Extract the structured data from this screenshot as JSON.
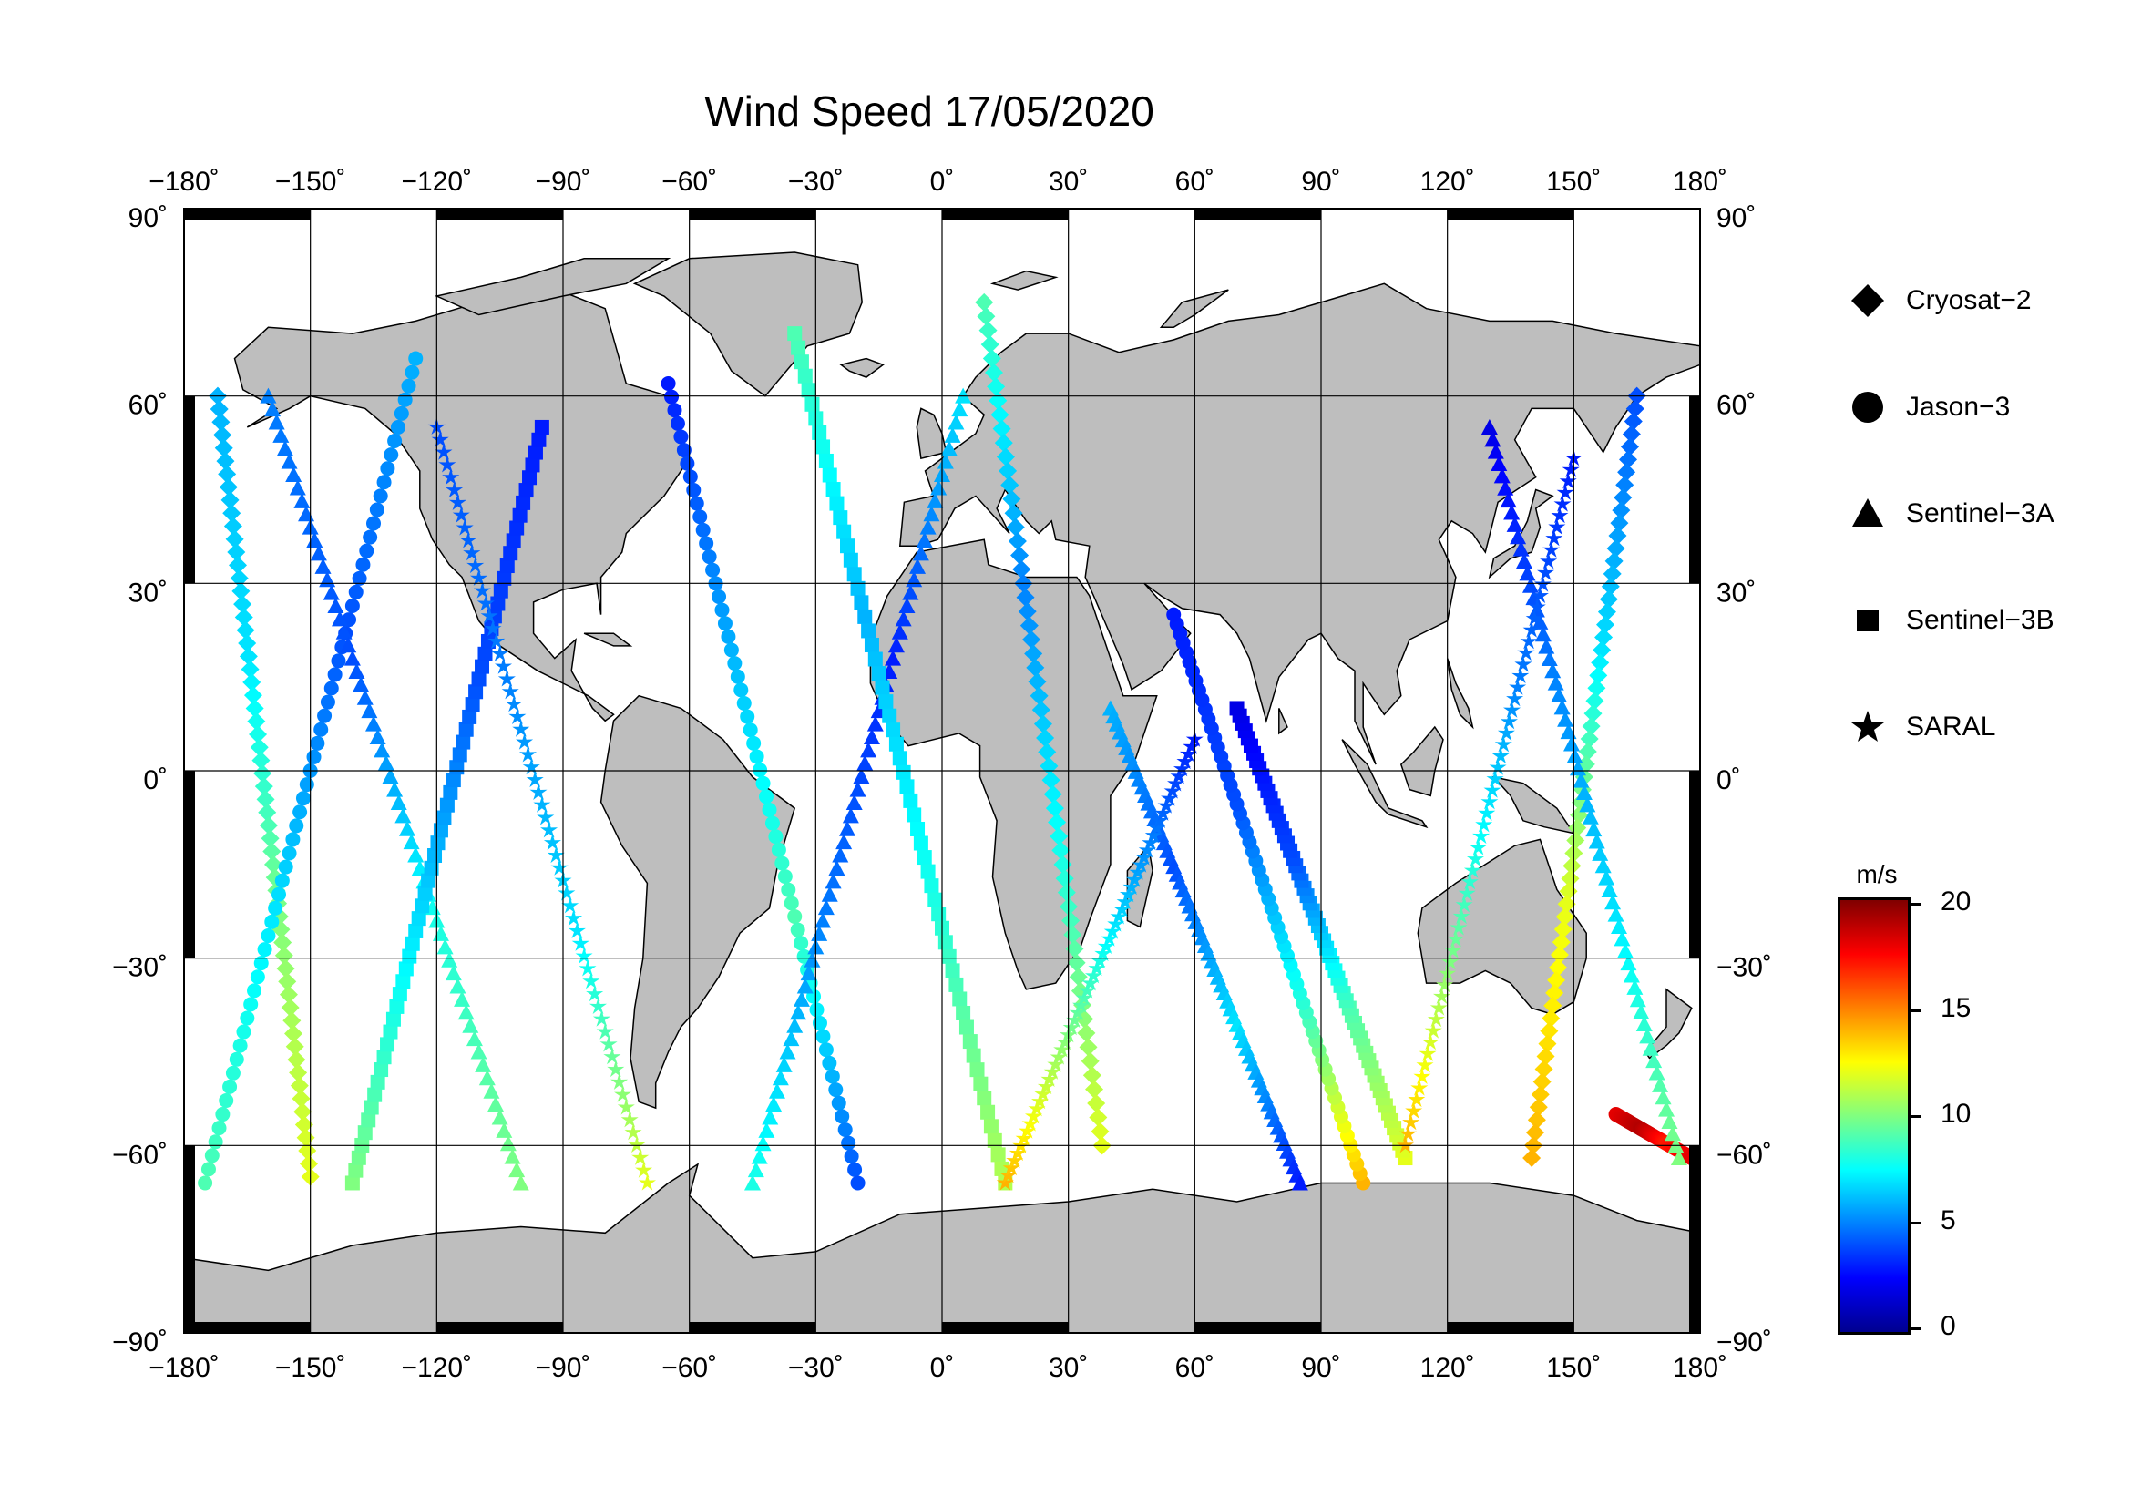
{
  "title": "Wind Speed 17/05/2020",
  "map": {
    "lon_range": [
      -180,
      180
    ],
    "lat_range": [
      -90,
      90
    ],
    "lon_ticks": [
      "−180˚",
      "−150˚",
      "−120˚",
      "−90˚",
      "−60˚",
      "−30˚",
      "0˚",
      "30˚",
      "60˚",
      "90˚",
      "120˚",
      "150˚",
      "180˚"
    ],
    "lat_ticks_left": [
      "−90˚",
      "−60˚",
      "−30˚",
      "0˚",
      "30˚",
      "60˚",
      "90˚"
    ],
    "lat_ticks_right": [
      "−90˚",
      "−60˚",
      "−30˚",
      "0˚",
      "30˚",
      "60˚",
      "90˚"
    ],
    "grid": true,
    "land_color": "#bebebe",
    "ocean_color": "#ffffff"
  },
  "legend": {
    "items": [
      {
        "label": "Cryosat−2",
        "symbol": "diamond"
      },
      {
        "label": "Jason−3",
        "symbol": "circle"
      },
      {
        "label": "Sentinel−3A",
        "symbol": "triangle"
      },
      {
        "label": "Sentinel−3B",
        "symbol": "square"
      },
      {
        "label": "SARAL",
        "symbol": "star"
      }
    ]
  },
  "colorbar": {
    "unit": "m/s",
    "min": 0,
    "max": 20,
    "ticks": [
      "20",
      "15",
      "10",
      "5",
      "0"
    ],
    "tick_values": [
      20,
      15,
      10,
      5,
      0
    ]
  },
  "chart_data": {
    "type": "scatter",
    "title": "Wind Speed 17/05/2020",
    "x_range": [
      -180,
      180
    ],
    "y_range": [
      -90,
      90
    ],
    "value_unit": "m/s",
    "value_range": [
      0,
      20
    ],
    "series": [
      {
        "name": "Cryosat−2",
        "tracks": [
          {
            "lon": [
              -172,
              -150
            ],
            "lat": [
              60,
              -65
            ],
            "v": [
              6,
              7,
              10,
              12
            ]
          },
          {
            "lon": [
              10,
              38
            ],
            "lat": [
              75,
              -60
            ],
            "v": [
              9,
              5,
              8,
              12
            ]
          },
          {
            "lon": [
              165,
              140
            ],
            "lat": [
              60,
              -62
            ],
            "v": [
              4,
              7,
              12,
              14
            ]
          }
        ]
      },
      {
        "name": "Jason−3",
        "tracks": [
          {
            "lon": [
              -175,
              -125
            ],
            "lat": [
              -66,
              66
            ],
            "v": [
              9,
              7,
              4,
              6
            ]
          },
          {
            "lon": [
              -65,
              -20
            ],
            "lat": [
              62,
              -66
            ],
            "v": [
              3,
              6,
              9,
              4
            ]
          },
          {
            "lon": [
              100,
              55
            ],
            "lat": [
              -66,
              25
            ],
            "v": [
              14,
              8,
              4,
              3
            ]
          },
          {
            "lon": [
              160,
              178
            ],
            "lat": [
              -55,
              -62
            ],
            "v": [
              18,
              19,
              17,
              18
            ]
          }
        ]
      },
      {
        "name": "Sentinel−3A",
        "tracks": [
          {
            "lon": [
              -160,
              -100
            ],
            "lat": [
              60,
              -66
            ],
            "v": [
              5,
              4,
              8,
              10
            ]
          },
          {
            "lon": [
              -45,
              5
            ],
            "lat": [
              -66,
              60
            ],
            "v": [
              8,
              5,
              3,
              7
            ]
          },
          {
            "lon": [
              40,
              85
            ],
            "lat": [
              10,
              -66
            ],
            "v": [
              6,
              4,
              7,
              3
            ]
          },
          {
            "lon": [
              175,
              130
            ],
            "lat": [
              -62,
              55
            ],
            "v": [
              10,
              7,
              5,
              2
            ]
          }
        ]
      },
      {
        "name": "Sentinel−3B",
        "tracks": [
          {
            "lon": [
              -140,
              -95
            ],
            "lat": [
              -66,
              55
            ],
            "v": [
              10,
              7,
              4,
              3
            ]
          },
          {
            "lon": [
              -35,
              15
            ],
            "lat": [
              70,
              -66
            ],
            "v": [
              9,
              6,
              8,
              11
            ]
          },
          {
            "lon": [
              110,
              70
            ],
            "lat": [
              -62,
              10
            ],
            "v": [
              12,
              9,
              4,
              2
            ]
          }
        ]
      },
      {
        "name": "SARAL",
        "tracks": [
          {
            "lon": [
              -120,
              -70
            ],
            "lat": [
              55,
              -66
            ],
            "v": [
              4,
              5,
              7,
              12
            ]
          },
          {
            "lon": [
              15,
              60
            ],
            "lat": [
              -66,
              5
            ],
            "v": [
              14,
              10,
              6,
              3
            ]
          },
          {
            "lon": [
              150,
              110
            ],
            "lat": [
              50,
              -60
            ],
            "v": [
              3,
              5,
              9,
              14
            ]
          }
        ]
      }
    ]
  }
}
